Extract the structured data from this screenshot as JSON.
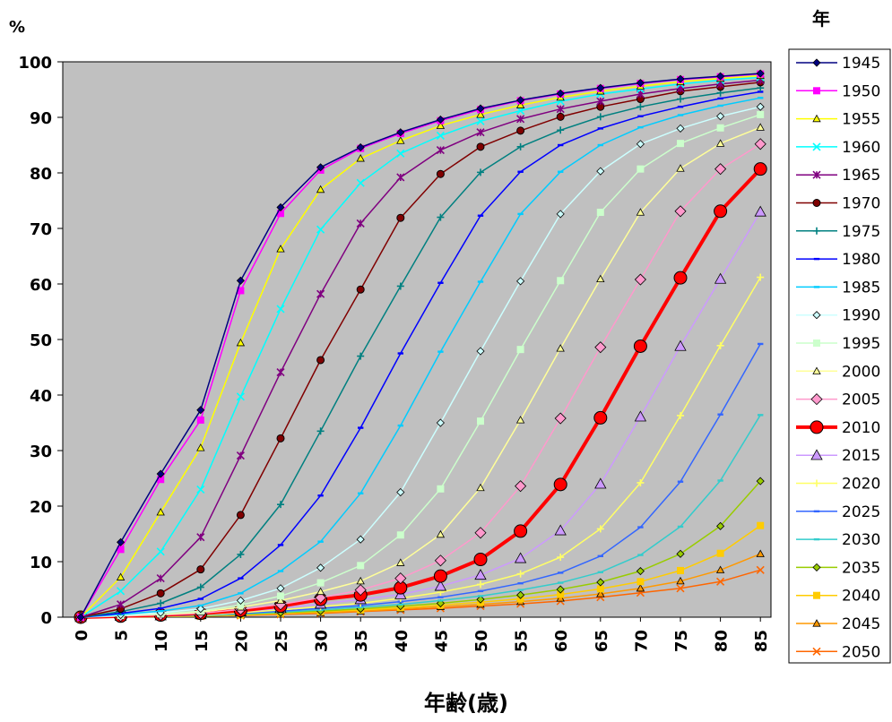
{
  "chart_data": {
    "type": "line",
    "y_unit_label": "%",
    "legend_title": "年",
    "xlabel": "年齢(歳)",
    "ylim": [
      0,
      100
    ],
    "yticks": [
      0,
      10,
      20,
      30,
      40,
      50,
      60,
      70,
      80,
      90,
      100
    ],
    "x": [
      0,
      5,
      10,
      15,
      20,
      25,
      30,
      35,
      40,
      45,
      50,
      55,
      60,
      65,
      70,
      75,
      80,
      85
    ],
    "grid": false,
    "legend_position": "right",
    "plot_background": "#c0c0c0",
    "series": [
      {
        "name": "1945",
        "color": "#000080",
        "marker": "diamond",
        "values": [
          0,
          13.5,
          25.8,
          37.3,
          60.6,
          73.8,
          81.0,
          84.6,
          87.3,
          89.6,
          91.6,
          93.1,
          94.3,
          95.3,
          96.2,
          96.9,
          97.4,
          97.9
        ]
      },
      {
        "name": "1950",
        "color": "#ff00ff",
        "marker": "square",
        "values": [
          0,
          12.2,
          24.8,
          35.5,
          58.8,
          72.7,
          80.5,
          84.4,
          87.1,
          89.4,
          91.4,
          93.0,
          94.2,
          95.2,
          96.1,
          96.8,
          97.3,
          97.8
        ]
      },
      {
        "name": "1955",
        "color": "#ffff00",
        "marker": "triangle",
        "values": [
          0,
          7.2,
          18.9,
          30.5,
          49.4,
          66.3,
          77.0,
          82.6,
          85.8,
          88.5,
          90.5,
          92.2,
          93.6,
          94.7,
          95.6,
          96.4,
          97.0,
          97.5
        ]
      },
      {
        "name": "1960",
        "color": "#00ffff",
        "marker": "x",
        "values": [
          0,
          4.7,
          11.8,
          23.0,
          39.7,
          55.5,
          69.8,
          78.2,
          83.5,
          86.7,
          89.3,
          91.2,
          92.9,
          94.2,
          95.1,
          96.0,
          96.7,
          97.2
        ]
      },
      {
        "name": "1965",
        "color": "#800080",
        "marker": "star",
        "values": [
          0,
          2.3,
          7.0,
          14.4,
          29.1,
          44.1,
          58.2,
          70.9,
          79.2,
          84.1,
          87.3,
          89.7,
          91.5,
          92.9,
          94.2,
          95.2,
          96.0,
          96.7
        ]
      },
      {
        "name": "1970",
        "color": "#800000",
        "marker": "circle",
        "values": [
          0,
          1.5,
          4.3,
          8.6,
          18.4,
          32.2,
          46.3,
          59.0,
          71.9,
          79.8,
          84.7,
          87.6,
          90.1,
          91.9,
          93.3,
          94.7,
          95.5,
          96.3
        ]
      },
      {
        "name": "1975",
        "color": "#008080",
        "marker": "plus",
        "values": [
          0,
          1.0,
          2.5,
          5.4,
          11.3,
          20.3,
          33.5,
          47.0,
          59.6,
          72.0,
          80.1,
          84.7,
          87.7,
          90.1,
          91.9,
          93.3,
          94.4,
          95.3
        ]
      },
      {
        "name": "1980",
        "color": "#0000ff",
        "marker": "dash",
        "values": [
          0,
          0.7,
          1.6,
          3.3,
          7.0,
          13.0,
          21.9,
          34.1,
          47.5,
          60.2,
          72.3,
          80.2,
          85.0,
          88.0,
          90.2,
          91.9,
          93.4,
          94.6
        ]
      },
      {
        "name": "1985",
        "color": "#00ccff",
        "marker": "dash",
        "values": [
          0,
          0.5,
          1.1,
          2.1,
          4.3,
          8.3,
          13.6,
          22.3,
          34.5,
          47.8,
          60.4,
          72.6,
          80.2,
          85.0,
          88.2,
          90.4,
          92.1,
          93.5
        ]
      },
      {
        "name": "1990",
        "color": "#ccffff",
        "marker": "diamond",
        "values": [
          0,
          0.4,
          0.8,
          1.5,
          3.0,
          5.2,
          8.9,
          14.0,
          22.5,
          35.0,
          47.9,
          60.5,
          72.6,
          80.3,
          85.2,
          88.0,
          90.2,
          91.9
        ]
      },
      {
        "name": "1995",
        "color": "#ccffcc",
        "marker": "square",
        "values": [
          0,
          0.3,
          0.6,
          1.1,
          2.2,
          3.8,
          6.2,
          9.3,
          14.8,
          23.1,
          35.3,
          48.2,
          60.6,
          72.9,
          80.7,
          85.3,
          88.1,
          90.5
        ]
      },
      {
        "name": "2000",
        "color": "#ffff99",
        "marker": "triangle",
        "values": [
          0,
          0.3,
          0.5,
          0.9,
          1.8,
          3.0,
          4.6,
          6.5,
          9.8,
          14.9,
          23.3,
          35.5,
          48.4,
          60.9,
          72.9,
          80.8,
          85.3,
          88.2
        ]
      },
      {
        "name": "2005",
        "color": "#ff99cc",
        "marker": "diamond",
        "values": [
          0,
          0.2,
          0.4,
          0.7,
          1.4,
          2.3,
          3.5,
          4.9,
          7.0,
          10.2,
          15.2,
          23.6,
          35.8,
          48.6,
          60.8,
          73.1,
          80.7,
          85.2
        ]
      },
      {
        "name": "2010",
        "color": "#ff0000",
        "marker": "circle",
        "values": [
          0,
          0.2,
          0.4,
          0.7,
          1.2,
          2.0,
          3.2,
          4.0,
          5.3,
          7.4,
          10.4,
          15.5,
          23.9,
          35.9,
          48.8,
          61.1,
          73.1,
          80.7
        ]
      },
      {
        "name": "2015",
        "color": "#cc99ff",
        "marker": "triangle",
        "values": [
          0,
          0.2,
          0.3,
          0.5,
          1.0,
          1.6,
          2.4,
          3.2,
          4.1,
          5.6,
          7.6,
          10.6,
          15.6,
          24.0,
          36.1,
          48.8,
          60.9,
          73.0
        ]
      },
      {
        "name": "2020",
        "color": "#ffff66",
        "marker": "plus",
        "values": [
          0,
          0.1,
          0.3,
          0.4,
          0.8,
          1.3,
          1.9,
          2.5,
          3.4,
          4.5,
          5.9,
          7.8,
          10.8,
          15.9,
          24.2,
          36.3,
          48.9,
          61.2
        ]
      },
      {
        "name": "2025",
        "color": "#3366ff",
        "marker": "dash",
        "values": [
          0,
          0.1,
          0.2,
          0.4,
          0.7,
          1.1,
          1.6,
          2.1,
          2.8,
          3.6,
          4.7,
          6.1,
          8.0,
          11.0,
          16.2,
          24.4,
          36.5,
          49.2
        ]
      },
      {
        "name": "2030",
        "color": "#33cccc",
        "marker": "dash",
        "values": [
          0,
          0.1,
          0.2,
          0.3,
          0.6,
          0.9,
          1.3,
          1.8,
          2.3,
          3.0,
          3.8,
          4.9,
          6.2,
          8.1,
          11.2,
          16.3,
          24.6,
          36.4
        ]
      },
      {
        "name": "2035",
        "color": "#99cc00",
        "marker": "diamond",
        "values": [
          0,
          0.1,
          0.2,
          0.3,
          0.5,
          0.8,
          1.1,
          1.5,
          2.0,
          2.5,
          3.2,
          4.0,
          5.0,
          6.3,
          8.3,
          11.4,
          16.4,
          24.5
        ]
      },
      {
        "name": "2040",
        "color": "#ffcc00",
        "marker": "square",
        "values": [
          0,
          0.1,
          0.1,
          0.2,
          0.4,
          0.7,
          1.0,
          1.3,
          1.7,
          2.2,
          2.7,
          3.3,
          4.1,
          5.1,
          6.4,
          8.4,
          11.5,
          16.5
        ]
      },
      {
        "name": "2045",
        "color": "#ff9900",
        "marker": "triangle",
        "values": [
          0,
          0.1,
          0.1,
          0.2,
          0.4,
          0.6,
          0.8,
          1.1,
          1.5,
          1.9,
          2.3,
          2.8,
          3.4,
          4.2,
          5.2,
          6.5,
          8.5,
          11.4
        ]
      },
      {
        "name": "2050",
        "color": "#ff6600",
        "marker": "x",
        "values": [
          0,
          0.1,
          0.1,
          0.2,
          0.3,
          0.5,
          0.7,
          1.0,
          1.3,
          1.6,
          2.0,
          2.4,
          2.9,
          3.6,
          4.4,
          5.2,
          6.4,
          8.5
        ]
      }
    ]
  }
}
